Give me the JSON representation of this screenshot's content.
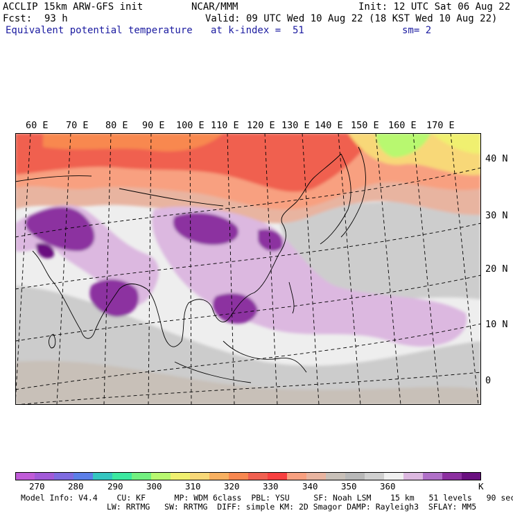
{
  "header": {
    "model": "ACCLIP 15km ARW-GFS init",
    "center": "NCAR/MMM",
    "init": "Init: 12 UTC Sat 06 Aug 22",
    "fcst_label": "Fcst:",
    "fcst_value": "93 h",
    "valid": "Valid: 09 UTC Wed 10 Aug 22 (18 KST Wed 10 Aug 22)",
    "field": "Equivalent potential temperature",
    "level": "at k-index =  51",
    "smooth": "sm= 2"
  },
  "map": {
    "lon_labels": [
      "60 E",
      "70 E",
      "80 E",
      "90 E",
      "100 E",
      "110 E",
      "120 E",
      "130 E",
      "140 E",
      "150 E",
      "160 E",
      "170 E"
    ],
    "lat_labels": [
      "40 N",
      "30 N",
      "20 N",
      "10 N",
      "0"
    ]
  },
  "colorbar": {
    "unit": "K",
    "ticks": [
      "270",
      "280",
      "290",
      "300",
      "310",
      "320",
      "330",
      "340",
      "350",
      "360"
    ],
    "colors": [
      "#c05cd8",
      "#a25ad8",
      "#7f6be0",
      "#5c7fe8",
      "#34c6c0",
      "#3ce8a0",
      "#72f080",
      "#b8f870",
      "#f0f070",
      "#f8d878",
      "#f8b060",
      "#f88850",
      "#f06050",
      "#f84040",
      "#f8a080",
      "#e8b4a0",
      "#c8c0b8",
      "#b8b8b8",
      "#d0d0d0",
      "#f0f0f0",
      "#dcb8e0",
      "#b070c8",
      "#8c30a0",
      "#6a1080"
    ]
  },
  "footer": {
    "line1": "Model Info: V4.4    CU: KF      MP: WDM 6class  PBL: YSU     SF: Noah LSM    15 km   51 levels   90 sec",
    "line2": "LW: RRTMG   SW: RRTMG  DIFF: simple KM: 2D Smagor DAMP: Rayleigh3  SFLAY: MM5"
  }
}
